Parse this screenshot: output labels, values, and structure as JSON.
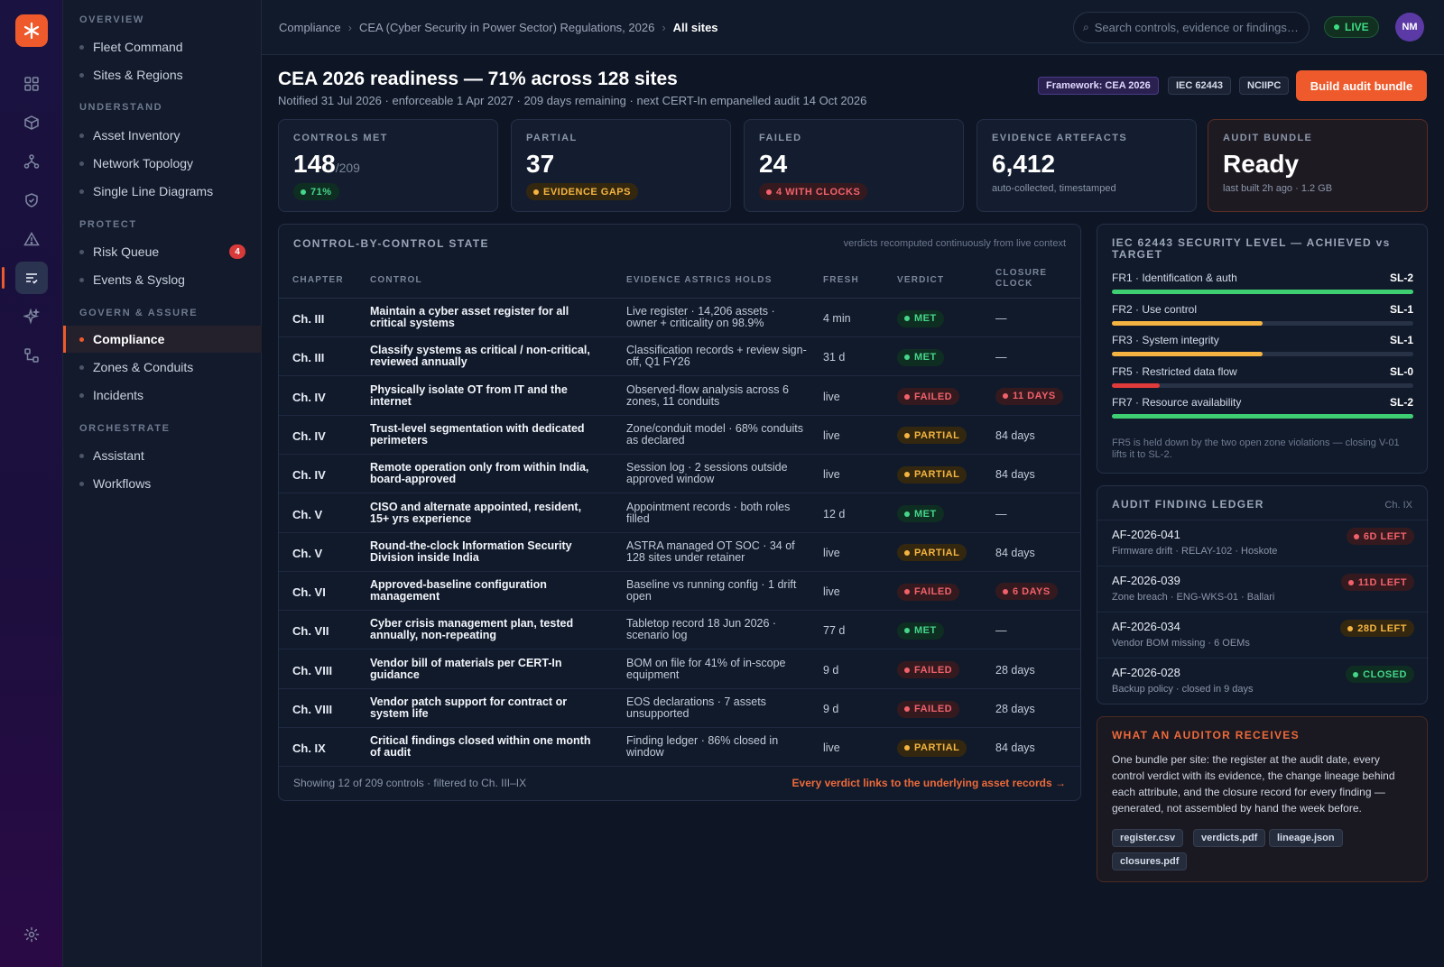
{
  "rail": {
    "icons": [
      "asterisk-logo-icon",
      "grid-icon",
      "cube-icon",
      "topology-icon",
      "shield-icon",
      "warning-icon",
      "compliance-icon",
      "sparkle-icon",
      "workflow-icon",
      "settings-icon"
    ]
  },
  "sidebar": {
    "sections": [
      {
        "title": "OVERVIEW",
        "items": [
          {
            "label": "Fleet Command"
          },
          {
            "label": "Sites & Regions"
          }
        ]
      },
      {
        "title": "UNDERSTAND",
        "items": [
          {
            "label": "Asset Inventory"
          },
          {
            "label": "Network Topology"
          },
          {
            "label": "Single Line Diagrams"
          }
        ]
      },
      {
        "title": "PROTECT",
        "items": [
          {
            "label": "Risk Queue",
            "badge": "4"
          },
          {
            "label": "Events & Syslog"
          }
        ]
      },
      {
        "title": "GOVERN & ASSURE",
        "items": [
          {
            "label": "Compliance",
            "active": true
          },
          {
            "label": "Zones & Conduits"
          },
          {
            "label": "Incidents"
          }
        ]
      },
      {
        "title": "ORCHESTRATE",
        "items": [
          {
            "label": "Assistant"
          },
          {
            "label": "Workflows"
          }
        ]
      }
    ]
  },
  "header": {
    "breadcrumb": [
      "Compliance",
      "CEA (Cyber Security in Power Sector) Regulations, 2026",
      "All sites"
    ],
    "search_placeholder": "Search controls, evidence or findings…",
    "live_label": "LIVE",
    "avatar_initials": "NM"
  },
  "page": {
    "title": "CEA 2026 readiness — 71% across 128 sites",
    "subtitle": "Notified 31 Jul 2026 · enforceable 1 Apr 2027 · 209 days remaining · next CERT-In empanelled audit 14 Oct 2026",
    "tags": [
      "Framework: CEA 2026",
      "IEC 62443",
      "NCIIPC"
    ],
    "build_button": "Build audit bundle"
  },
  "kpis": [
    {
      "label": "CONTROLS MET",
      "value": "148",
      "suffix": "/209",
      "pill": "71%",
      "pill_type": "met"
    },
    {
      "label": "PARTIAL",
      "value": "37",
      "pill": "EVIDENCE GAPS",
      "pill_type": "partial"
    },
    {
      "label": "FAILED",
      "value": "24",
      "pill": "4 WITH CLOCKS",
      "pill_type": "failed"
    },
    {
      "label": "EVIDENCE ARTEFACTS",
      "value": "6,412",
      "note": "auto-collected, timestamped"
    },
    {
      "label": "AUDIT BUNDLE",
      "value": "Ready",
      "note": "last built 2h ago · 1.2 GB"
    }
  ],
  "table": {
    "title": "CONTROL-BY-CONTROL STATE",
    "note": "verdicts recomputed continuously from live context",
    "columns": [
      "CHAPTER",
      "CONTROL",
      "EVIDENCE ASTRICS HOLDS",
      "FRESH",
      "VERDICT",
      "CLOSURE CLOCK"
    ],
    "rows": [
      {
        "chapter": "Ch. III",
        "control": "Maintain a cyber asset register for all critical systems",
        "evidence": "Live register · 14,206 assets · owner + criticality on 98.9%",
        "fresh": "4 min",
        "verdict": "MET",
        "clock": "—"
      },
      {
        "chapter": "Ch. III",
        "control": "Classify systems as critical / non-critical, reviewed annually",
        "evidence": "Classification records + review sign-off, Q1 FY26",
        "fresh": "31 d",
        "verdict": "MET",
        "clock": "—"
      },
      {
        "chapter": "Ch. IV",
        "control": "Physically isolate OT from IT and the internet",
        "evidence": "Observed-flow analysis across 6 zones, 11 conduits",
        "fresh": "live",
        "verdict": "FAILED",
        "clock": "11 DAYS",
        "clock_pill": true
      },
      {
        "chapter": "Ch. IV",
        "control": "Trust-level segmentation with dedicated perimeters",
        "evidence": "Zone/conduit model · 68% conduits as declared",
        "fresh": "live",
        "verdict": "PARTIAL",
        "clock": "84 days"
      },
      {
        "chapter": "Ch. IV",
        "control": "Remote operation only from within India, board-approved",
        "evidence": "Session log · 2 sessions outside approved window",
        "fresh": "live",
        "verdict": "PARTIAL",
        "clock": "84 days"
      },
      {
        "chapter": "Ch. V",
        "control": "CISO and alternate appointed, resident, 15+ yrs experience",
        "evidence": "Appointment records · both roles filled",
        "fresh": "12 d",
        "verdict": "MET",
        "clock": "—"
      },
      {
        "chapter": "Ch. V",
        "control": "Round-the-clock Information Security Division inside India",
        "evidence": "ASTRA managed OT SOC · 34 of 128 sites under retainer",
        "fresh": "live",
        "verdict": "PARTIAL",
        "clock": "84 days"
      },
      {
        "chapter": "Ch. VI",
        "control": "Approved-baseline configuration management",
        "evidence": "Baseline vs running config · 1 drift open",
        "fresh": "live",
        "verdict": "FAILED",
        "clock": "6 DAYS",
        "clock_pill": true
      },
      {
        "chapter": "Ch. VII",
        "control": "Cyber crisis management plan, tested annually, non-repeating",
        "evidence": "Tabletop record 18 Jun 2026 · scenario log",
        "fresh": "77 d",
        "verdict": "MET",
        "clock": "—"
      },
      {
        "chapter": "Ch. VIII",
        "control": "Vendor bill of materials per CERT-In guidance",
        "evidence": "BOM on file for 41% of in-scope equipment",
        "fresh": "9 d",
        "verdict": "FAILED",
        "clock": "28 days"
      },
      {
        "chapter": "Ch. VIII",
        "control": "Vendor patch support for contract or system life",
        "evidence": "EOS declarations · 7 assets unsupported",
        "fresh": "9 d",
        "verdict": "FAILED",
        "clock": "28 days"
      },
      {
        "chapter": "Ch. IX",
        "control": "Critical findings closed within one month of audit",
        "evidence": "Finding ledger · 86% closed in window",
        "fresh": "live",
        "verdict": "PARTIAL",
        "clock": "84 days"
      }
    ],
    "footer": "Showing 12 of 209 controls · filtered to Ch. III–IX",
    "footer_link": "Every verdict links to the underlying asset records →"
  },
  "security_levels": {
    "title": "IEC 62443 SECURITY LEVEL — ACHIEVED vs TARGET",
    "items": [
      {
        "name": "FR1 · Identification & auth",
        "level": "SL-2",
        "fraction": 1.0,
        "color": "#3ecf73"
      },
      {
        "name": "FR2 · Use control",
        "level": "SL-1",
        "fraction": 0.5,
        "color": "#f5b441"
      },
      {
        "name": "FR3 · System integrity",
        "level": "SL-1",
        "fraction": 0.5,
        "color": "#f5b441"
      },
      {
        "name": "FR5 · Restricted data flow",
        "level": "SL-0",
        "fraction": 0.16,
        "color": "#e03a3a"
      },
      {
        "name": "FR7 · Resource availability",
        "level": "SL-2",
        "fraction": 1.0,
        "color": "#3ecf73"
      }
    ],
    "note": "FR5 is held down by the two open zone violations — closing V-01 lifts it to SL-2."
  },
  "ledger": {
    "title": "AUDIT FINDING LEDGER",
    "chapter": "Ch. IX",
    "items": [
      {
        "id": "AF-2026-041",
        "sub": "Firmware drift · RELAY-102 · Hoskote",
        "status": "6D LEFT",
        "type": "failed"
      },
      {
        "id": "AF-2026-039",
        "sub": "Zone breach · ENG-WKS-01 · Ballari",
        "status": "11D LEFT",
        "type": "failed"
      },
      {
        "id": "AF-2026-034",
        "sub": "Vendor BOM missing · 6 OEMs",
        "status": "28D LEFT",
        "type": "partial"
      },
      {
        "id": "AF-2026-028",
        "sub": "Backup policy · closed in 9 days",
        "status": "CLOSED",
        "type": "closed"
      }
    ]
  },
  "auditor": {
    "title": "WHAT AN AUDITOR RECEIVES",
    "text": "One bundle per site: the register at the audit date, every control verdict with its evidence, the change lineage behind each attribute, and the closure record for every finding — generated, not assembled by hand the week before.",
    "files": [
      "register.csv",
      "verdicts.pdf",
      "lineage.json",
      "closures.pdf"
    ]
  }
}
